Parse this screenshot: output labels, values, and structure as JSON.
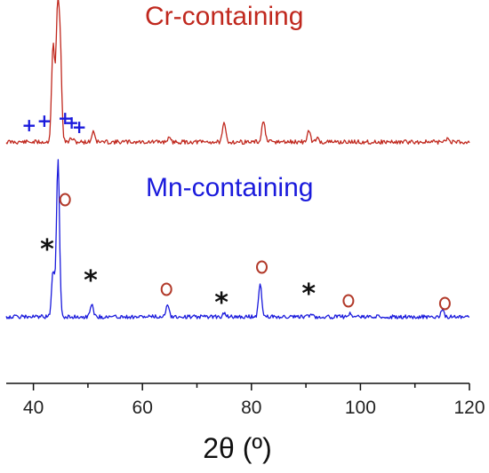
{
  "chart_data": {
    "type": "line",
    "title": "",
    "xlabel": "2θ (º)",
    "ylabel": "",
    "xlim": [
      35,
      120
    ],
    "xticks": [
      40,
      60,
      80,
      100,
      120
    ],
    "grid": false,
    "series": [
      {
        "name": "Cr-containing",
        "color": "#c0281e",
        "baseline_level": 0.66,
        "peaks": [
          {
            "x": 43.6,
            "height": 0.26
          },
          {
            "x": 44.4,
            "height": 0.32
          },
          {
            "x": 44.9,
            "height": 0.24
          },
          {
            "x": 47.0,
            "height": 0.01
          },
          {
            "x": 51.0,
            "height": 0.03
          },
          {
            "x": 64.8,
            "height": 0.01
          },
          {
            "x": 75.0,
            "height": 0.05
          },
          {
            "x": 82.2,
            "height": 0.06
          },
          {
            "x": 90.5,
            "height": 0.03
          },
          {
            "x": 92.0,
            "height": 0.01
          },
          {
            "x": 116.0,
            "height": 0.01
          }
        ],
        "markers": [
          {
            "symbol": "+",
            "x": 39.2
          },
          {
            "symbol": "+",
            "x": 42.0
          },
          {
            "symbol": "+",
            "x": 45.8
          },
          {
            "symbol": "+",
            "x": 47.0
          },
          {
            "symbol": "+",
            "x": 48.4
          }
        ]
      },
      {
        "name": "Mn-containing",
        "color": "#1a1adc",
        "baseline_level": 0.0,
        "peaks": [
          {
            "x": 43.6,
            "height": 0.13
          },
          {
            "x": 44.5,
            "height": 0.45
          },
          {
            "x": 50.7,
            "height": 0.04
          },
          {
            "x": 64.6,
            "height": 0.04
          },
          {
            "x": 75.0,
            "height": 0.01
          },
          {
            "x": 81.6,
            "height": 0.1
          },
          {
            "x": 91.0,
            "height": 0.01
          },
          {
            "x": 98.0,
            "height": 0.01
          },
          {
            "x": 115.0,
            "height": 0.02
          }
        ],
        "markers": [
          {
            "symbol": "o",
            "x": 45.8
          },
          {
            "symbol": "*",
            "x": 42.5
          },
          {
            "symbol": "*",
            "x": 50.5
          },
          {
            "symbol": "o",
            "x": 64.4
          },
          {
            "symbol": "*",
            "x": 74.5
          },
          {
            "symbol": "o",
            "x": 81.9
          },
          {
            "symbol": "*",
            "x": 90.5
          },
          {
            "symbol": "o",
            "x": 97.8
          },
          {
            "symbol": "o",
            "x": 115.5
          }
        ]
      }
    ]
  }
}
